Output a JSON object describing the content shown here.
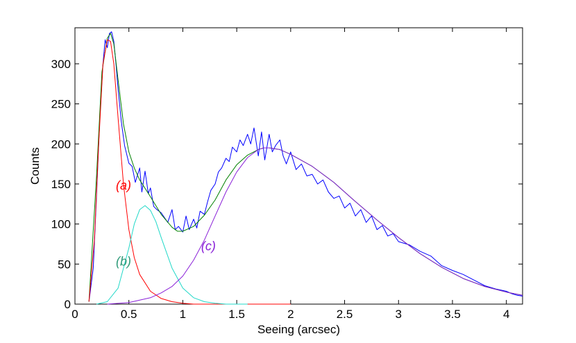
{
  "chart_data": {
    "type": "line",
    "title": "",
    "xlabel": "Seeing (arcsec)",
    "ylabel": "Counts",
    "xlim": [
      0,
      4.15
    ],
    "ylim": [
      0,
      345
    ],
    "grid": false,
    "legend": "none",
    "xticks": [
      0,
      0.5,
      1,
      1.5,
      2,
      2.5,
      3,
      3.5,
      4
    ],
    "xtick_labels": [
      "0",
      "0.5",
      "1",
      "1.5",
      "2",
      "2.5",
      "3",
      "3.5",
      "4"
    ],
    "yticks": [
      0,
      50,
      100,
      150,
      200,
      250,
      300
    ],
    "ytick_labels": [
      "0",
      "50",
      "100",
      "150",
      "200",
      "250",
      "300"
    ],
    "series": [
      {
        "color": "#0000ff",
        "x": [
          0.13,
          0.17,
          0.2,
          0.23,
          0.26,
          0.28,
          0.3,
          0.32,
          0.34,
          0.36,
          0.38,
          0.4,
          0.43,
          0.46,
          0.5,
          0.53,
          0.56,
          0.6,
          0.62,
          0.65,
          0.68,
          0.7,
          0.73,
          0.76,
          0.8,
          0.83,
          0.86,
          0.9,
          0.93,
          0.96,
          1.0,
          1.03,
          1.06,
          1.1,
          1.13,
          1.16,
          1.2,
          1.23,
          1.26,
          1.3,
          1.33,
          1.36,
          1.4,
          1.43,
          1.46,
          1.5,
          1.53,
          1.56,
          1.6,
          1.63,
          1.66,
          1.7,
          1.73,
          1.76,
          1.8,
          1.83,
          1.86,
          1.9,
          1.93,
          1.96,
          2.0,
          2.05,
          2.1,
          2.15,
          2.2,
          2.25,
          2.3,
          2.35,
          2.4,
          2.45,
          2.5,
          2.55,
          2.6,
          2.65,
          2.7,
          2.75,
          2.8,
          2.85,
          2.9,
          2.95,
          3.0,
          3.1,
          3.2,
          3.3,
          3.4,
          3.5,
          3.6,
          3.7,
          3.8,
          3.9,
          4.0,
          4.05,
          4.1,
          4.15
        ],
        "values": [
          3,
          45,
          135,
          230,
          300,
          330,
          320,
          338,
          340,
          328,
          300,
          268,
          228,
          198,
          176,
          172,
          152,
          170,
          140,
          166,
          138,
          145,
          122,
          118,
          114,
          108,
          102,
          118,
          93,
          97,
          90,
          110,
          93,
          106,
          95,
          116,
          112,
          128,
          142,
          150,
          165,
          170,
          182,
          178,
          196,
          190,
          205,
          198,
          212,
          200,
          220,
          185,
          215,
          180,
          212,
          190,
          198,
          205,
          185,
          175,
          190,
          168,
          175,
          160,
          162,
          150,
          155,
          140,
          132,
          135,
          120,
          126,
          110,
          118,
          102,
          110,
          93,
          98,
          85,
          88,
          78,
          74,
          66,
          60,
          48,
          42,
          37,
          30,
          23,
          19,
          16,
          13,
          11,
          10
        ],
        "label": ""
      },
      {
        "color": "#008000",
        "x": [
          0.13,
          0.2,
          0.25,
          0.3,
          0.33,
          0.36,
          0.4,
          0.45,
          0.5,
          0.55,
          0.6,
          0.7,
          0.8,
          0.9,
          0.95,
          1.0,
          1.1,
          1.2,
          1.3,
          1.4,
          1.5,
          1.6,
          1.7,
          1.75,
          1.8,
          1.9,
          2.0,
          2.2,
          2.4,
          2.6,
          2.8,
          3.0,
          3.2,
          3.4,
          3.6,
          3.8,
          4.0,
          4.15
        ],
        "values": [
          3,
          160,
          290,
          332,
          338,
          325,
          280,
          225,
          190,
          170,
          155,
          134,
          112,
          96,
          91,
          91,
          97,
          111,
          130,
          155,
          174,
          186,
          193,
          195,
          195,
          193,
          187,
          172,
          152,
          128,
          105,
          83,
          63,
          46,
          32,
          22,
          15,
          11
        ],
        "label": ""
      },
      {
        "color": "#ff0000",
        "x": [
          0.13,
          0.18,
          0.22,
          0.26,
          0.3,
          0.33,
          0.36,
          0.4,
          0.45,
          0.5,
          0.55,
          0.6,
          0.7,
          0.8,
          0.9,
          1.0,
          1.1,
          1.2,
          1.4,
          1.6,
          1.8,
          2.0
        ],
        "values": [
          3,
          80,
          200,
          300,
          330,
          328,
          300,
          232,
          150,
          93,
          58,
          37,
          16,
          7,
          3,
          1,
          0,
          0,
          0,
          0,
          0,
          0
        ],
        "label": "(a)"
      },
      {
        "color": "#20d8c8",
        "x": [
          0.2,
          0.3,
          0.4,
          0.5,
          0.55,
          0.6,
          0.65,
          0.7,
          0.75,
          0.8,
          0.9,
          1.0,
          1.1,
          1.2,
          1.3,
          1.4,
          1.5,
          1.6
        ],
        "values": [
          0,
          3,
          20,
          70,
          100,
          118,
          123,
          117,
          103,
          83,
          45,
          20,
          8,
          3,
          1,
          0,
          0,
          0
        ],
        "label": "(b)"
      },
      {
        "color": "#8a20d8",
        "x": [
          0.3,
          0.5,
          0.7,
          0.8,
          0.9,
          1.0,
          1.1,
          1.2,
          1.3,
          1.4,
          1.5,
          1.6,
          1.7,
          1.75,
          1.8,
          1.9,
          2.0,
          2.2,
          2.4,
          2.6,
          2.8,
          3.0,
          3.2,
          3.4,
          3.6,
          3.8,
          4.0,
          4.15
        ],
        "values": [
          0,
          2,
          8,
          14,
          22,
          35,
          55,
          80,
          110,
          140,
          165,
          183,
          193,
          195,
          195,
          193,
          187,
          172,
          152,
          128,
          105,
          83,
          63,
          46,
          32,
          22,
          15,
          11
        ],
        "label": "(c)"
      }
    ],
    "annotations": [
      {
        "text": "(a)",
        "color": "#ff0000",
        "x": 0.38,
        "y": 143
      },
      {
        "text": "(b)",
        "color": "#2e9a78",
        "x": 0.38,
        "y": 48
      },
      {
        "text": "(c)",
        "color": "#8a20d8",
        "x": 1.17,
        "y": 67
      }
    ]
  }
}
